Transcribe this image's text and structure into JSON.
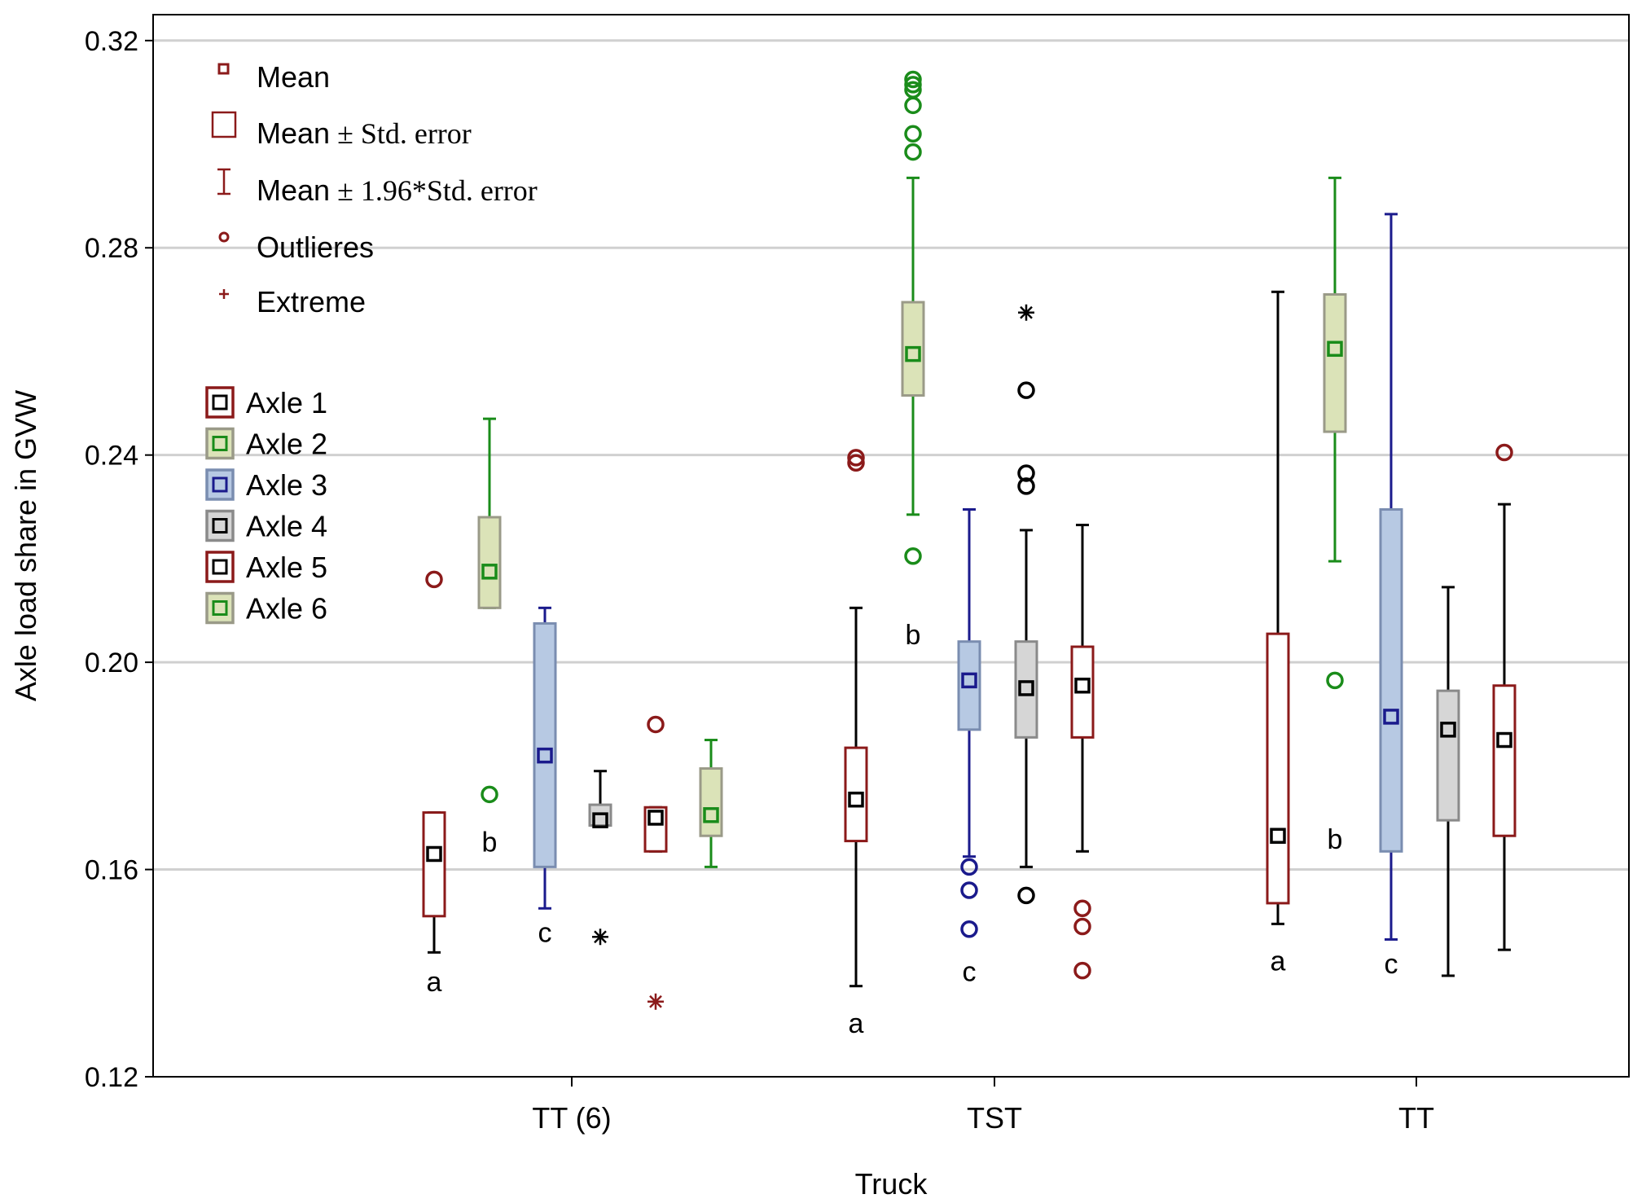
{
  "chart_data": {
    "type": "boxplot",
    "title": "",
    "xlabel": "Truck",
    "ylabel": "Axle load share in GVW",
    "ylim": [
      0.12,
      0.325
    ],
    "yticks": [
      0.12,
      0.16,
      0.2,
      0.24,
      0.28,
      0.32
    ],
    "ytick_labels": [
      "0.12",
      "0.16",
      "0.20",
      "0.24",
      "0.28",
      "0.32"
    ],
    "categories": [
      "TT (6)",
      "TST",
      "TT"
    ],
    "series_legend": [
      {
        "name": "Axle 1",
        "edge": "#8b1a1a",
        "fill": "#ffffff"
      },
      {
        "name": "Axle 2",
        "edge": "#9a9a88",
        "fill": "#dbe3b8"
      },
      {
        "name": "Axle 3",
        "edge": "#7a8db0",
        "fill": "#b7c9e3"
      },
      {
        "name": "Axle 4",
        "edge": "#8a8a8a",
        "fill": "#d6d6d6"
      },
      {
        "name": "Axle 5",
        "edge": "#8b1a1a",
        "fill": "#ffffff"
      },
      {
        "name": "Axle 6",
        "edge": "#9a9a88",
        "fill": "#dbe3b8"
      }
    ],
    "stat_legend": [
      {
        "symbol": "mean",
        "label": "Mean"
      },
      {
        "symbol": "box",
        "label": "Mean",
        "serif_suffix": " ± Std. error"
      },
      {
        "symbol": "whisker",
        "label": "Mean",
        "serif_suffix": " ± 1.96*Std. error"
      },
      {
        "symbol": "outlier",
        "label": "Outlieres"
      },
      {
        "symbol": "extreme",
        "label": "Extreme"
      }
    ],
    "boxes": [
      {
        "group": "TT (6)",
        "axle": "Axle 1",
        "mean": 0.163,
        "box": [
          0.151,
          0.171
        ],
        "whisker": [
          0.144,
          0.171
        ],
        "edge": "#8b1a1a",
        "fill": "#ffffff",
        "whisker_color": "#000000",
        "mean_color": "#000000",
        "outliers": [
          0.216
        ],
        "outlier_color": "#8b1a1a",
        "extremes": [],
        "letter": "a",
        "letter_y": 0.1365
      },
      {
        "group": "TT (6)",
        "axle": "Axle 2",
        "mean": 0.2175,
        "box": [
          0.2105,
          0.228
        ],
        "whisker": [
          0.2105,
          0.247
        ],
        "edge": "#9a9a88",
        "fill": "#dbe3b8",
        "whisker_color": "#1a8c1a",
        "mean_color": "#1a8c1a",
        "outliers": [
          0.1745
        ],
        "outlier_color": "#1a8c1a",
        "extremes": [],
        "letter": "b",
        "letter_y": 0.1635
      },
      {
        "group": "TT (6)",
        "axle": "Axle 3",
        "mean": 0.182,
        "box": [
          0.1605,
          0.2075
        ],
        "whisker": [
          0.1525,
          0.2105
        ],
        "edge": "#7a8db0",
        "fill": "#b7c9e3",
        "whisker_color": "#1a1a8c",
        "mean_color": "#1a1a8c",
        "outliers": [],
        "outlier_color": "#1a1a8c",
        "extremes": [],
        "letter": "c",
        "letter_y": 0.146
      },
      {
        "group": "TT (6)",
        "axle": "Axle 4",
        "mean": 0.1695,
        "box": [
          0.1685,
          0.1725
        ],
        "whisker": [
          0.1685,
          0.179
        ],
        "edge": "#8a8a8a",
        "fill": "#d6d6d6",
        "whisker_color": "#000000",
        "mean_color": "#000000",
        "outliers": [],
        "outlier_color": "#000000",
        "extremes": [
          0.147
        ],
        "extreme_color": "#000000",
        "letter": "",
        "letter_y": 0
      },
      {
        "group": "TT (6)",
        "axle": "Axle 5",
        "mean": 0.17,
        "box": [
          0.1635,
          0.172
        ],
        "whisker": [
          0.1635,
          0.172
        ],
        "edge": "#8b1a1a",
        "fill": "#ffffff",
        "whisker_color": "#000000",
        "mean_color": "#000000",
        "outliers": [
          0.188
        ],
        "outlier_color": "#8b1a1a",
        "extremes": [
          0.1345
        ],
        "extreme_color": "#8b1a1a",
        "letter": "",
        "letter_y": 0
      },
      {
        "group": "TT (6)",
        "axle": "Axle 6",
        "mean": 0.1705,
        "box": [
          0.1665,
          0.1795
        ],
        "whisker": [
          0.1605,
          0.185
        ],
        "edge": "#9a9a88",
        "fill": "#dbe3b8",
        "whisker_color": "#1a8c1a",
        "mean_color": "#1a8c1a",
        "outliers": [],
        "outlier_color": "#1a8c1a",
        "extremes": [],
        "letter": "",
        "letter_y": 0
      },
      {
        "group": "TST",
        "axle": "Axle 1",
        "mean": 0.1735,
        "box": [
          0.1655,
          0.1835
        ],
        "whisker": [
          0.1375,
          0.2105
        ],
        "edge": "#8b1a1a",
        "fill": "#ffffff",
        "whisker_color": "#000000",
        "mean_color": "#000000",
        "outliers": [
          0.2385,
          0.2395
        ],
        "outlier_color": "#8b1a1a",
        "extremes": [],
        "letter": "a",
        "letter_y": 0.1285
      },
      {
        "group": "TST",
        "axle": "Axle 2",
        "mean": 0.2595,
        "box": [
          0.2515,
          0.2695
        ],
        "whisker": [
          0.2285,
          0.2935
        ],
        "edge": "#9a9a88",
        "fill": "#dbe3b8",
        "whisker_color": "#1a8c1a",
        "mean_color": "#1a8c1a",
        "outliers": [
          0.3125,
          0.3115,
          0.3105,
          0.3075,
          0.302,
          0.2985,
          0.2205
        ],
        "outlier_color": "#1a8c1a",
        "extremes": [],
        "letter": "b",
        "letter_y": 0.2035
      },
      {
        "group": "TST",
        "axle": "Axle 3",
        "mean": 0.1965,
        "box": [
          0.187,
          0.204
        ],
        "whisker": [
          0.1625,
          0.2295
        ],
        "edge": "#7a8db0",
        "fill": "#b7c9e3",
        "whisker_color": "#1a1a8c",
        "mean_color": "#1a1a8c",
        "outliers": [
          0.1605,
          0.156,
          0.1485
        ],
        "outlier_color": "#1a1a8c",
        "extremes": [],
        "letter": "c",
        "letter_y": 0.1385
      },
      {
        "group": "TST",
        "axle": "Axle 4",
        "mean": 0.195,
        "box": [
          0.1855,
          0.204
        ],
        "whisker": [
          0.1605,
          0.2255
        ],
        "edge": "#8a8a8a",
        "fill": "#d6d6d6",
        "whisker_color": "#000000",
        "mean_color": "#000000",
        "outliers": [
          0.2525,
          0.2365,
          0.234,
          0.155
        ],
        "outlier_color": "#000000",
        "extremes": [
          0.2675
        ],
        "extreme_color": "#000000",
        "letter": "",
        "letter_y": 0
      },
      {
        "group": "TST",
        "axle": "Axle 5",
        "mean": 0.1955,
        "box": [
          0.1855,
          0.203
        ],
        "whisker": [
          0.1635,
          0.2265
        ],
        "edge": "#8b1a1a",
        "fill": "#ffffff",
        "whisker_color": "#000000",
        "mean_color": "#000000",
        "outliers": [
          0.1525,
          0.149,
          0.1405
        ],
        "outlier_color": "#8b1a1a",
        "extremes": [],
        "letter": "",
        "letter_y": 0
      },
      {
        "group": "TT",
        "axle": "Axle 1",
        "mean": 0.1665,
        "box": [
          0.1535,
          0.2055
        ],
        "whisker": [
          0.1495,
          0.2715
        ],
        "edge": "#8b1a1a",
        "fill": "#ffffff",
        "whisker_color": "#000000",
        "mean_color": "#000000",
        "outliers": [],
        "outlier_color": "#8b1a1a",
        "extremes": [],
        "letter": "a",
        "letter_y": 0.1405
      },
      {
        "group": "TT",
        "axle": "Axle 2",
        "mean": 0.2605,
        "box": [
          0.2445,
          0.271
        ],
        "whisker": [
          0.2195,
          0.2935
        ],
        "edge": "#9a9a88",
        "fill": "#dbe3b8",
        "whisker_color": "#1a8c1a",
        "mean_color": "#1a8c1a",
        "outliers": [
          0.1965
        ],
        "outlier_color": "#1a8c1a",
        "extremes": [],
        "letter": "b",
        "letter_y": 0.164
      },
      {
        "group": "TT",
        "axle": "Axle 3",
        "mean": 0.1895,
        "box": [
          0.1635,
          0.2295
        ],
        "whisker": [
          0.1465,
          0.2865
        ],
        "edge": "#7a8db0",
        "fill": "#b7c9e3",
        "whisker_color": "#1a1a8c",
        "mean_color": "#1a1a8c",
        "outliers": [],
        "outlier_color": "#1a1a8c",
        "extremes": [],
        "letter": "c",
        "letter_y": 0.14
      },
      {
        "group": "TT",
        "axle": "Axle 4",
        "mean": 0.187,
        "box": [
          0.1695,
          0.1945
        ],
        "whisker": [
          0.1395,
          0.2145
        ],
        "edge": "#8a8a8a",
        "fill": "#d6d6d6",
        "whisker_color": "#000000",
        "mean_color": "#000000",
        "outliers": [],
        "outlier_color": "#000000",
        "extremes": [],
        "letter": "",
        "letter_y": 0
      },
      {
        "group": "TT",
        "axle": "Axle 5",
        "mean": 0.185,
        "box": [
          0.1665,
          0.1955
        ],
        "whisker": [
          0.1445,
          0.2305
        ],
        "edge": "#8b1a1a",
        "fill": "#ffffff",
        "whisker_color": "#000000",
        "mean_color": "#000000",
        "outliers": [
          0.2405
        ],
        "outlier_color": "#8b1a1a",
        "extremes": [],
        "letter": "",
        "letter_y": 0
      }
    ]
  }
}
